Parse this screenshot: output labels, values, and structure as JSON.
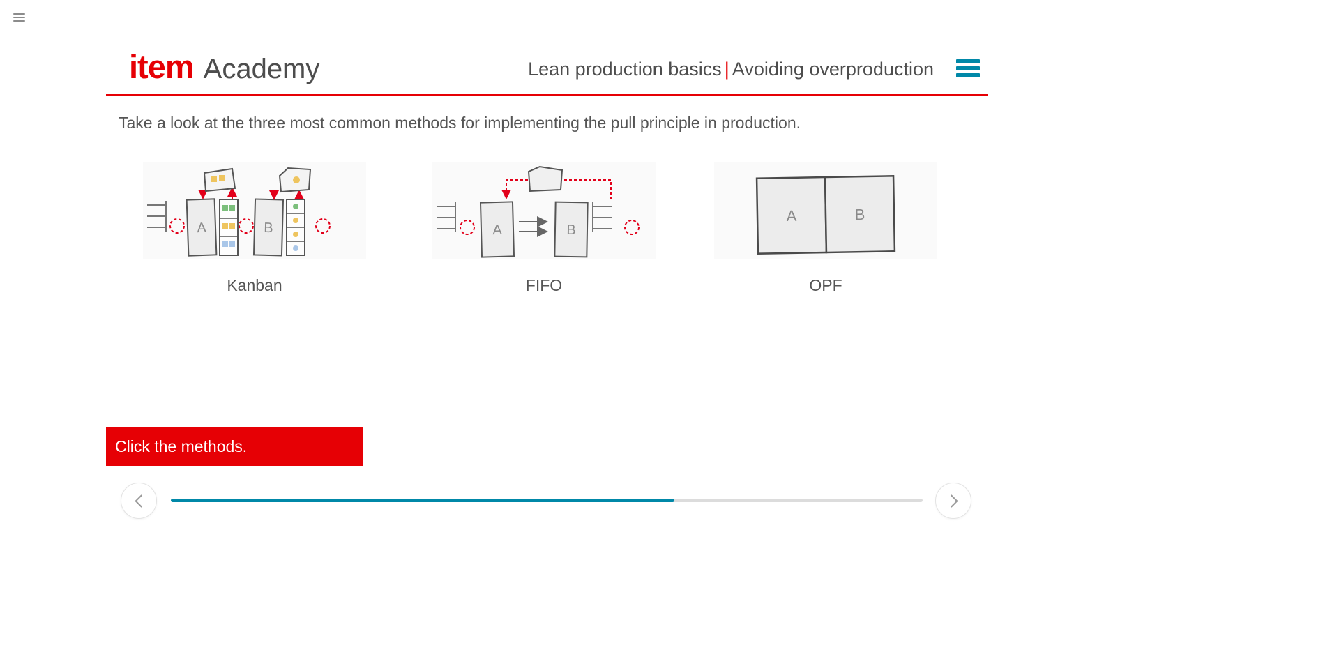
{
  "header": {
    "logo": {
      "brand": "item",
      "suffix": "Academy"
    },
    "course_title": "Lean production basics",
    "separator": "|",
    "lesson_title": "Avoiding overproduction"
  },
  "main": {
    "intro": "Take a look at the three most common methods for implementing the pull principle in production.",
    "prompt": "Click the methods.",
    "methods": [
      {
        "id": "kanban",
        "label": "Kanban",
        "station_a": "A",
        "station_b": "B"
      },
      {
        "id": "fifo",
        "label": "FIFO",
        "station_a": "A",
        "station_b": "B"
      },
      {
        "id": "opf",
        "label": "OPF",
        "station_a": "A",
        "station_b": "B"
      }
    ]
  },
  "footer": {
    "progress_percent": 67
  },
  "colors": {
    "brand_red": "#e60005",
    "accent_teal": "#0088a8",
    "diagram_red": "#e2001a"
  }
}
